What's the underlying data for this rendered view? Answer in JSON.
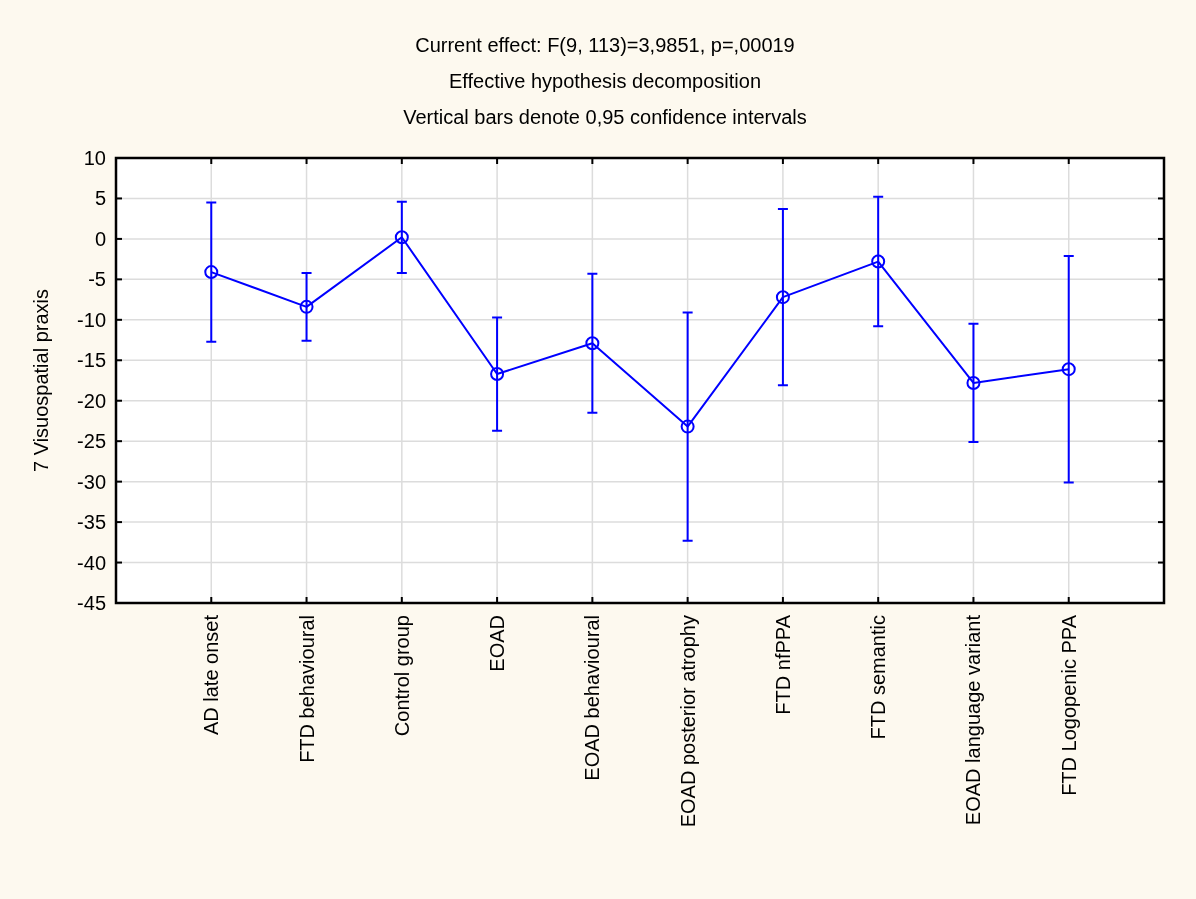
{
  "chart_data": {
    "type": "line",
    "title": "Current effect: F(9, 113)=3,9851, p=,00019",
    "subtitle": "Effective hypothesis decomposition",
    "annotations": [
      "Vertical bars denote 0,95 confidence intervals"
    ],
    "ylabel": "7 Visuospatial praxis",
    "categories": [
      "AD late onset",
      "FTD behavioural",
      "Control group",
      "EOAD",
      "EOAD behavioural",
      "EOAD posterior atrophy",
      "FTD nfPPA",
      "FTD semantic",
      "EOAD language variant",
      "FTD Logopenic PPA"
    ],
    "values": [
      -4.1,
      -8.4,
      0.2,
      -16.7,
      -12.9,
      -23.2,
      -7.2,
      -2.8,
      -17.8,
      -16.1
    ],
    "errors": [
      8.6,
      4.2,
      4.4,
      7.0,
      8.6,
      14.1,
      10.9,
      8.0,
      7.3,
      14.0
    ],
    "color": "#0000ff",
    "marker": "circle",
    "line_style": "solid",
    "grid": true,
    "ylim": [
      -45,
      10
    ],
    "yticks": [
      -45,
      -40,
      -35,
      -30,
      -25,
      -20,
      -15,
      -10,
      -5,
      0,
      5,
      10
    ]
  }
}
